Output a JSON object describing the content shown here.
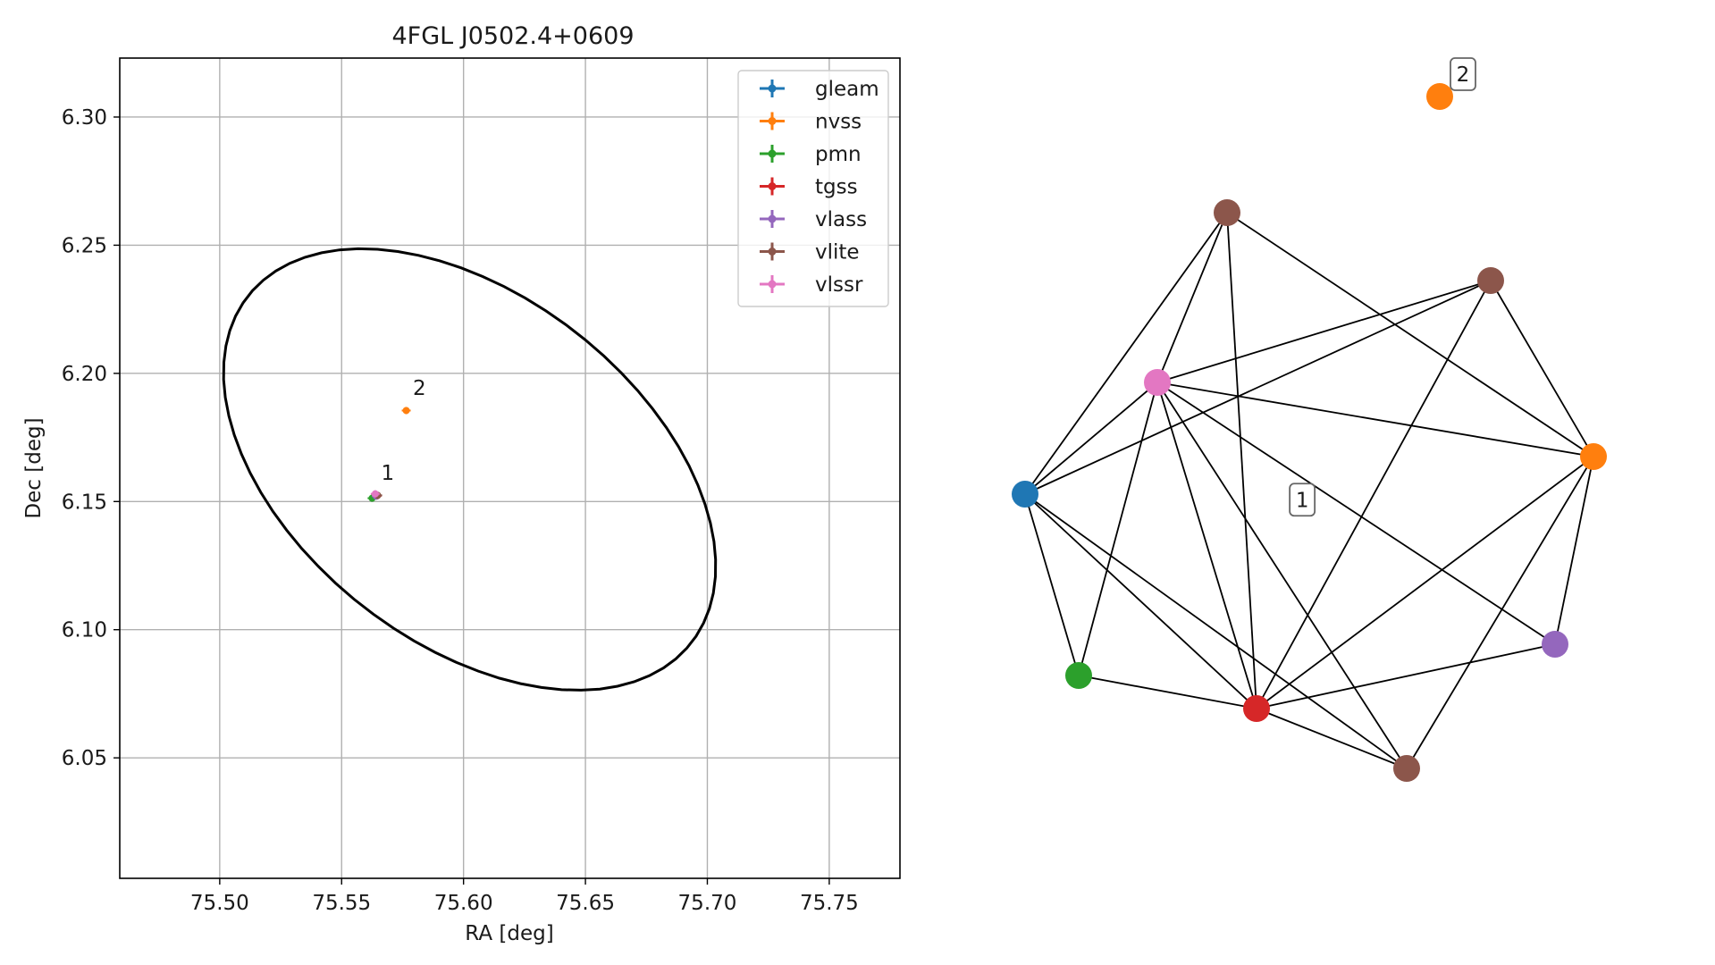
{
  "chart_data": [
    {
      "type": "scatter",
      "title": "4FGL J0502.4+0609",
      "xlabel": "RA [deg]",
      "ylabel": "Dec [deg]",
      "xlim": [
        75.459,
        75.779
      ],
      "ylim": [
        6.003,
        6.323
      ],
      "grid": true,
      "legend_position": "top-right",
      "x_ticks": [
        "75.50",
        "75.55",
        "75.60",
        "75.65",
        "75.70",
        "75.75"
      ],
      "y_ticks": [
        "6.05",
        "6.10",
        "6.15",
        "6.20",
        "6.25",
        "6.30"
      ],
      "ellipse": {
        "center": [
          75.6025,
          6.1625
        ],
        "semi_major_deg": 0.1134,
        "semi_minor_deg": 0.0689,
        "rotation_deg": 35,
        "color": "#000000"
      },
      "series": [
        {
          "name": "gleam",
          "color": "#1f77b4",
          "points": []
        },
        {
          "name": "nvss",
          "color": "#ff7f0e",
          "points": [
            [
              75.5765,
              6.1855
            ]
          ]
        },
        {
          "name": "pmn",
          "color": "#2ca02c",
          "points": [
            [
              75.5625,
              6.1513
            ]
          ]
        },
        {
          "name": "tgss",
          "color": "#d62728",
          "points": [
            [
              75.5645,
              6.1522
            ]
          ]
        },
        {
          "name": "vlass",
          "color": "#9467bd",
          "points": [
            [
              75.5642,
              6.1521
            ]
          ]
        },
        {
          "name": "vlite",
          "color": "#8c564b",
          "points": [
            [
              75.5648,
              6.1524
            ]
          ]
        },
        {
          "name": "vlssr",
          "color": "#e377c2",
          "points": [
            [
              75.5638,
              6.153
            ]
          ]
        }
      ],
      "annotations": [
        {
          "text": "1",
          "x": 75.5655,
          "y": 6.1585
        },
        {
          "text": "2",
          "x": 75.5785,
          "y": 6.1915
        }
      ]
    },
    {
      "type": "network",
      "nodes": [
        {
          "id": "n0",
          "color": "#1f77b4"
        },
        {
          "id": "n1",
          "color": "#ff7f0e"
        },
        {
          "id": "n2",
          "color": "#ff7f0e"
        },
        {
          "id": "n3",
          "color": "#2ca02c"
        },
        {
          "id": "n4",
          "color": "#d62728"
        },
        {
          "id": "n5",
          "color": "#9467bd"
        },
        {
          "id": "n6",
          "color": "#8c564b"
        },
        {
          "id": "n7",
          "color": "#8c564b"
        },
        {
          "id": "n8",
          "color": "#8c564b"
        },
        {
          "id": "n9",
          "color": "#e377c2"
        }
      ],
      "edges": [
        [
          "n0",
          "n6"
        ],
        [
          "n0",
          "n7"
        ],
        [
          "n0",
          "n9"
        ],
        [
          "n0",
          "n3"
        ],
        [
          "n0",
          "n4"
        ],
        [
          "n0",
          "n8"
        ],
        [
          "n6",
          "n9"
        ],
        [
          "n6",
          "n4"
        ],
        [
          "n6",
          "n1"
        ],
        [
          "n7",
          "n9"
        ],
        [
          "n7",
          "n1"
        ],
        [
          "n7",
          "n4"
        ],
        [
          "n9",
          "n1"
        ],
        [
          "n9",
          "n3"
        ],
        [
          "n9",
          "n4"
        ],
        [
          "n9",
          "n8"
        ],
        [
          "n9",
          "n5"
        ],
        [
          "n1",
          "n4"
        ],
        [
          "n1",
          "n8"
        ],
        [
          "n1",
          "n5"
        ],
        [
          "n3",
          "n4"
        ],
        [
          "n4",
          "n8"
        ],
        [
          "n4",
          "n5"
        ]
      ],
      "labels": [
        {
          "text": "1",
          "group": [
            "n0",
            "n3",
            "n4",
            "n5",
            "n6",
            "n7",
            "n9"
          ]
        },
        {
          "text": "2",
          "group": [
            "n2"
          ]
        }
      ]
    }
  ]
}
